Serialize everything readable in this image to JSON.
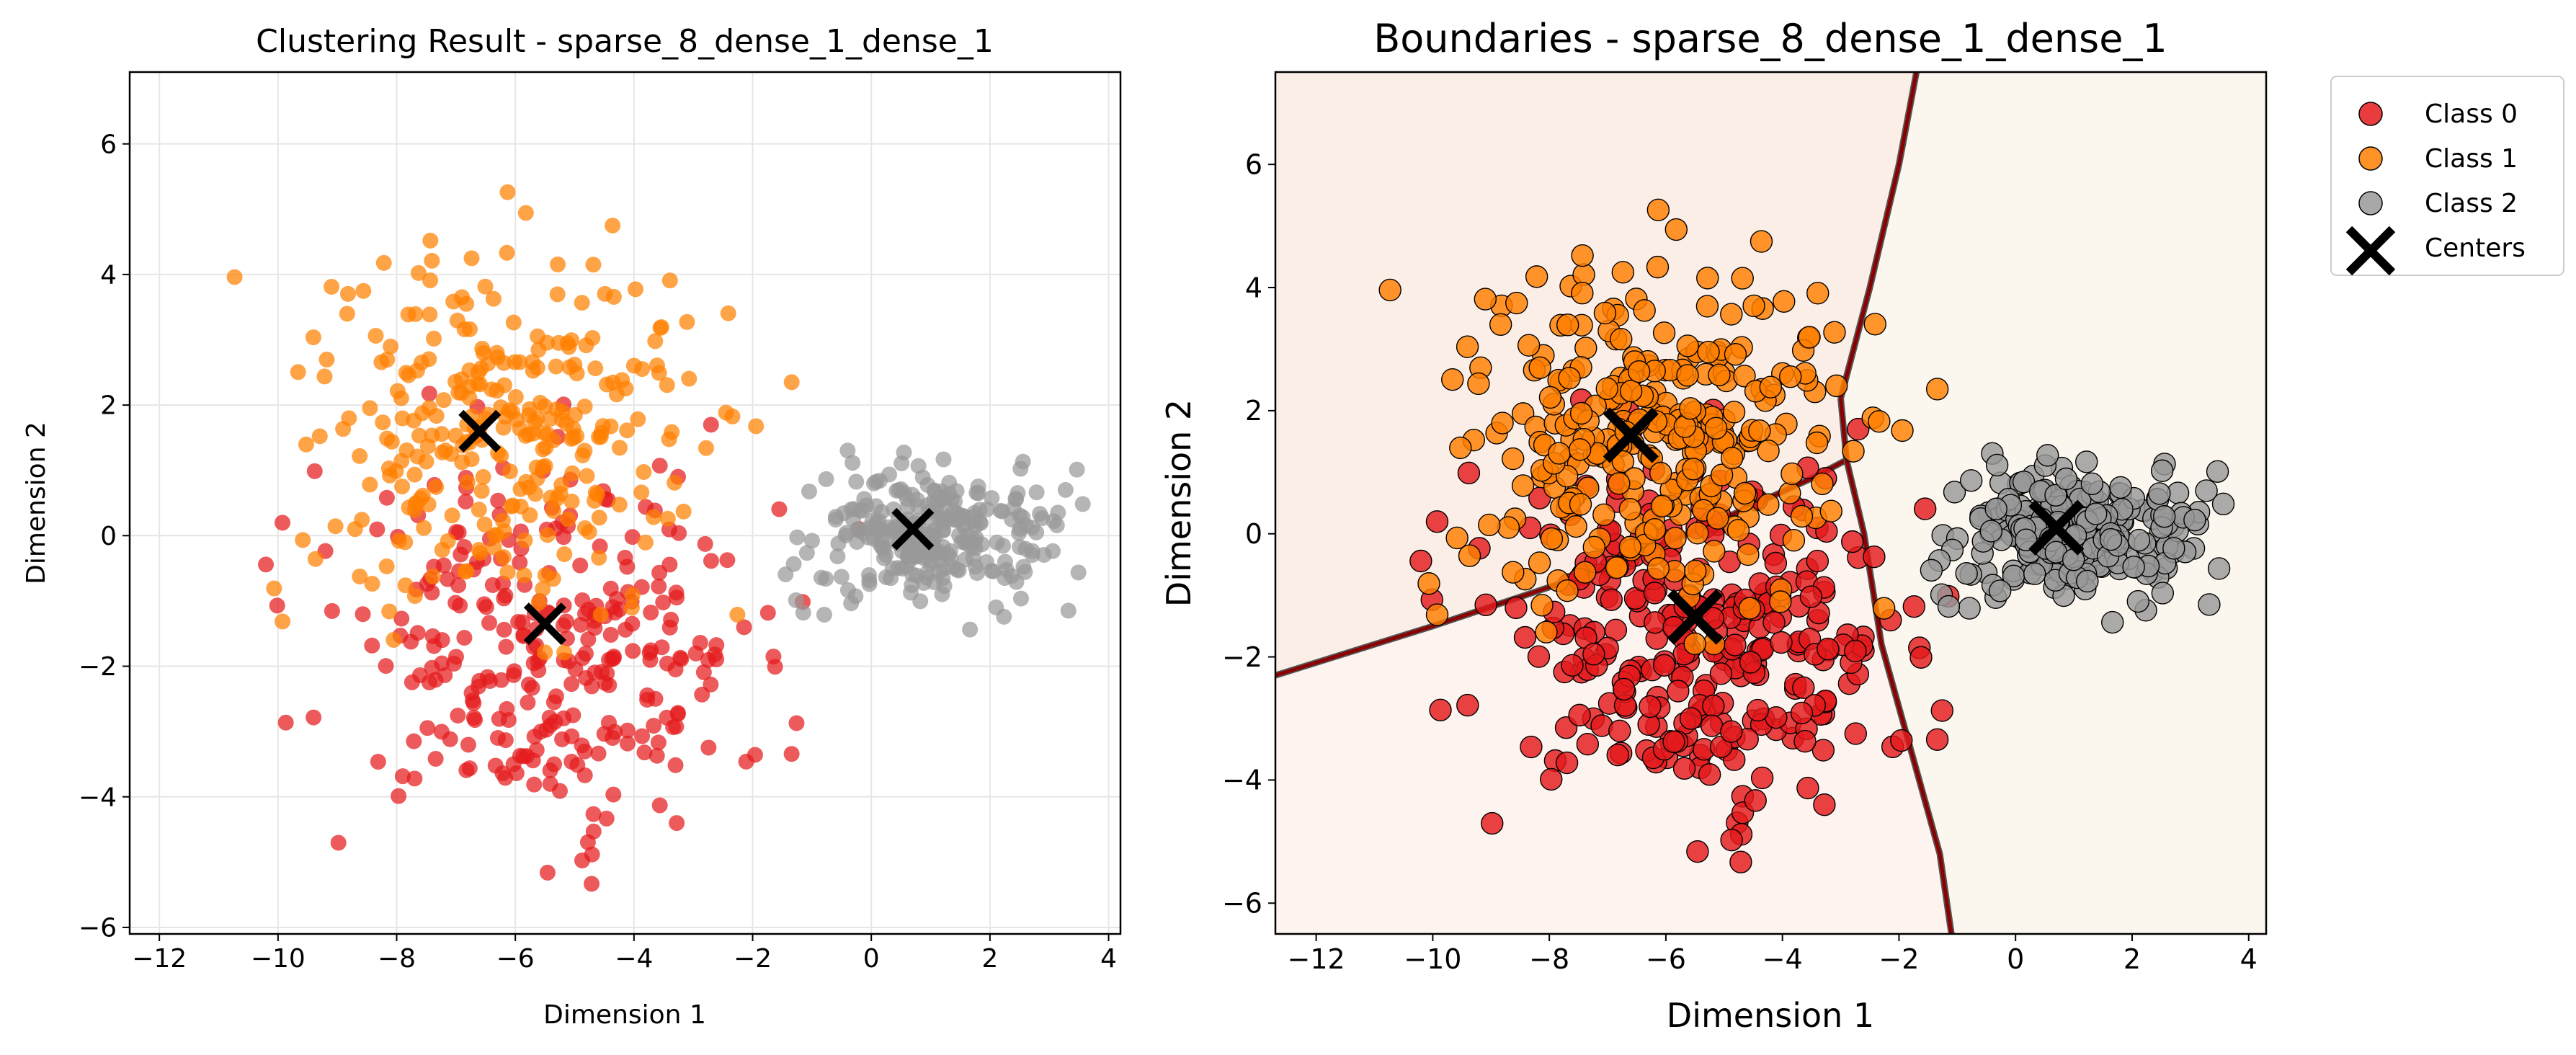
{
  "colors": {
    "class0": "#e41a1c",
    "class1": "#ff7f00",
    "class2": "#999999",
    "centers": "#000000",
    "boundary": "#8b0000",
    "grid": "#e6e6e6"
  },
  "chart_data": [
    {
      "type": "scatter",
      "title": "Clustering Result - sparse_8_dense_1_dense_1",
      "xlabel": "Dimension 1",
      "ylabel": "Dimension 2",
      "xlim": [
        -12.5,
        4.2
      ],
      "ylim": [
        -6.1,
        7.1
      ],
      "xticks": [
        -12,
        -10,
        -8,
        -6,
        -4,
        -2,
        0,
        2,
        4
      ],
      "yticks": [
        -6,
        -4,
        -2,
        0,
        2,
        4,
        6
      ],
      "grid": true,
      "legend": "none",
      "series": [
        {
          "id": "class0",
          "cluster_mean": [
            -5.5,
            -1.7
          ],
          "spread": [
            1.8,
            1.4
          ],
          "count": 300
        },
        {
          "id": "class1",
          "cluster_mean": [
            -6.3,
            1.6
          ],
          "spread": [
            1.7,
            1.4
          ],
          "count": 300
        },
        {
          "id": "class2",
          "cluster_mean": [
            1.0,
            0.0
          ],
          "spread": [
            1.0,
            0.5
          ],
          "count": 280
        }
      ],
      "centers": [
        [
          -5.5,
          -1.35
        ],
        [
          -6.6,
          1.6
        ],
        [
          0.7,
          0.1
        ]
      ]
    },
    {
      "type": "scatter",
      "title": "Boundaries - sparse_8_dense_1_dense_1",
      "xlabel": "Dimension 1",
      "ylabel": "Dimension 2",
      "xlim": [
        -12.7,
        4.3
      ],
      "ylim": [
        -6.5,
        7.5
      ],
      "xticks": [
        -12,
        -10,
        -8,
        -6,
        -4,
        -2,
        0,
        2,
        4
      ],
      "yticks": [
        -6,
        -4,
        -2,
        0,
        2,
        4,
        6
      ],
      "grid": false,
      "legend": "outside-top-right",
      "legend_entries": [
        "Class 0",
        "Class 1",
        "Class 2",
        "Centers"
      ],
      "centers": [
        [
          -5.5,
          -1.35
        ],
        [
          -6.6,
          1.6
        ],
        [
          0.7,
          0.1
        ]
      ],
      "boundaries": [
        [
          [
            -12.7,
            -2.3
          ],
          [
            -10.0,
            -1.5
          ],
          [
            -7.0,
            -0.55
          ],
          [
            -5.0,
            0.25
          ],
          [
            -3.5,
            0.9
          ],
          [
            -2.9,
            1.2
          ]
        ],
        [
          [
            -2.9,
            1.2
          ],
          [
            -3.0,
            2.2
          ],
          [
            -2.5,
            4.0
          ],
          [
            -2.0,
            6.0
          ],
          [
            -1.7,
            7.5
          ]
        ],
        [
          [
            -2.9,
            1.2
          ],
          [
            -2.6,
            0.0
          ],
          [
            -2.3,
            -1.8
          ],
          [
            -1.8,
            -3.5
          ],
          [
            -1.3,
            -5.2
          ],
          [
            -1.1,
            -6.5
          ]
        ]
      ]
    }
  ],
  "legend": {
    "items": [
      {
        "label": "Class 0",
        "color": "#e41a1c",
        "marker": "circle"
      },
      {
        "label": "Class 1",
        "color": "#ff7f00",
        "marker": "circle"
      },
      {
        "label": "Class 2",
        "color": "#999999",
        "marker": "circle"
      },
      {
        "label": "Centers",
        "color": "#000000",
        "marker": "x"
      }
    ]
  }
}
